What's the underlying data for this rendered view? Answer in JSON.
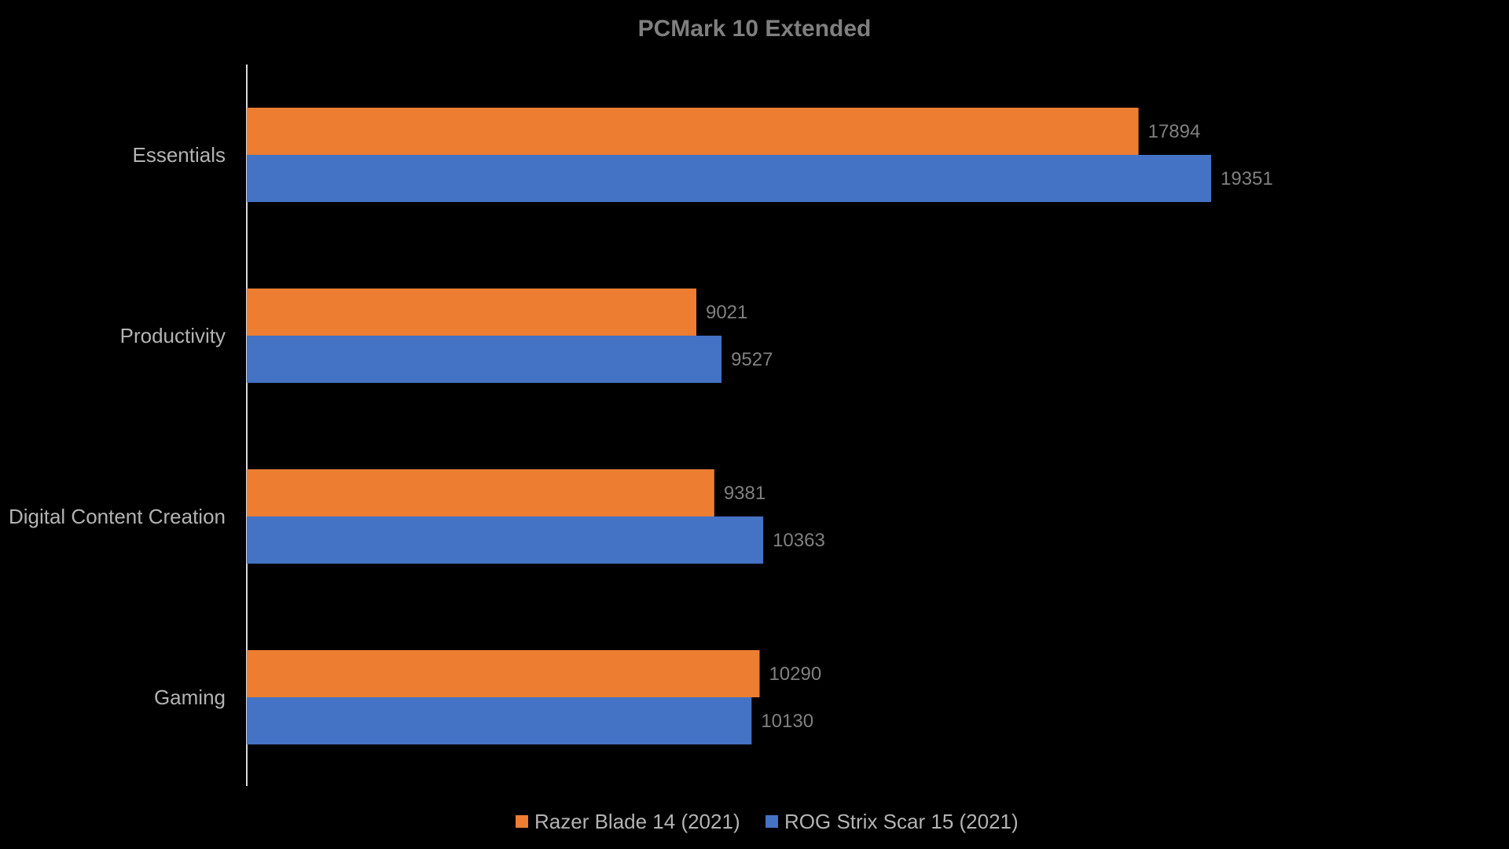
{
  "chart_data": {
    "type": "bar",
    "orientation": "horizontal",
    "title": "PCMark 10 Extended",
    "categories": [
      "Essentials",
      "Productivity",
      "Digital Content Creation",
      "Gaming"
    ],
    "series": [
      {
        "name": "Razer Blade 14 (2021)",
        "color": "#ed7d31",
        "values": [
          17894,
          9021,
          9381,
          10290
        ]
      },
      {
        "name": "ROG Strix Scar 15 (2021)",
        "color": "#4472c4",
        "values": [
          19351,
          9527,
          10363,
          10130
        ]
      }
    ],
    "xlim": [
      0,
      25000
    ],
    "grid": false,
    "data_labels": true,
    "legend_position": "bottom"
  }
}
